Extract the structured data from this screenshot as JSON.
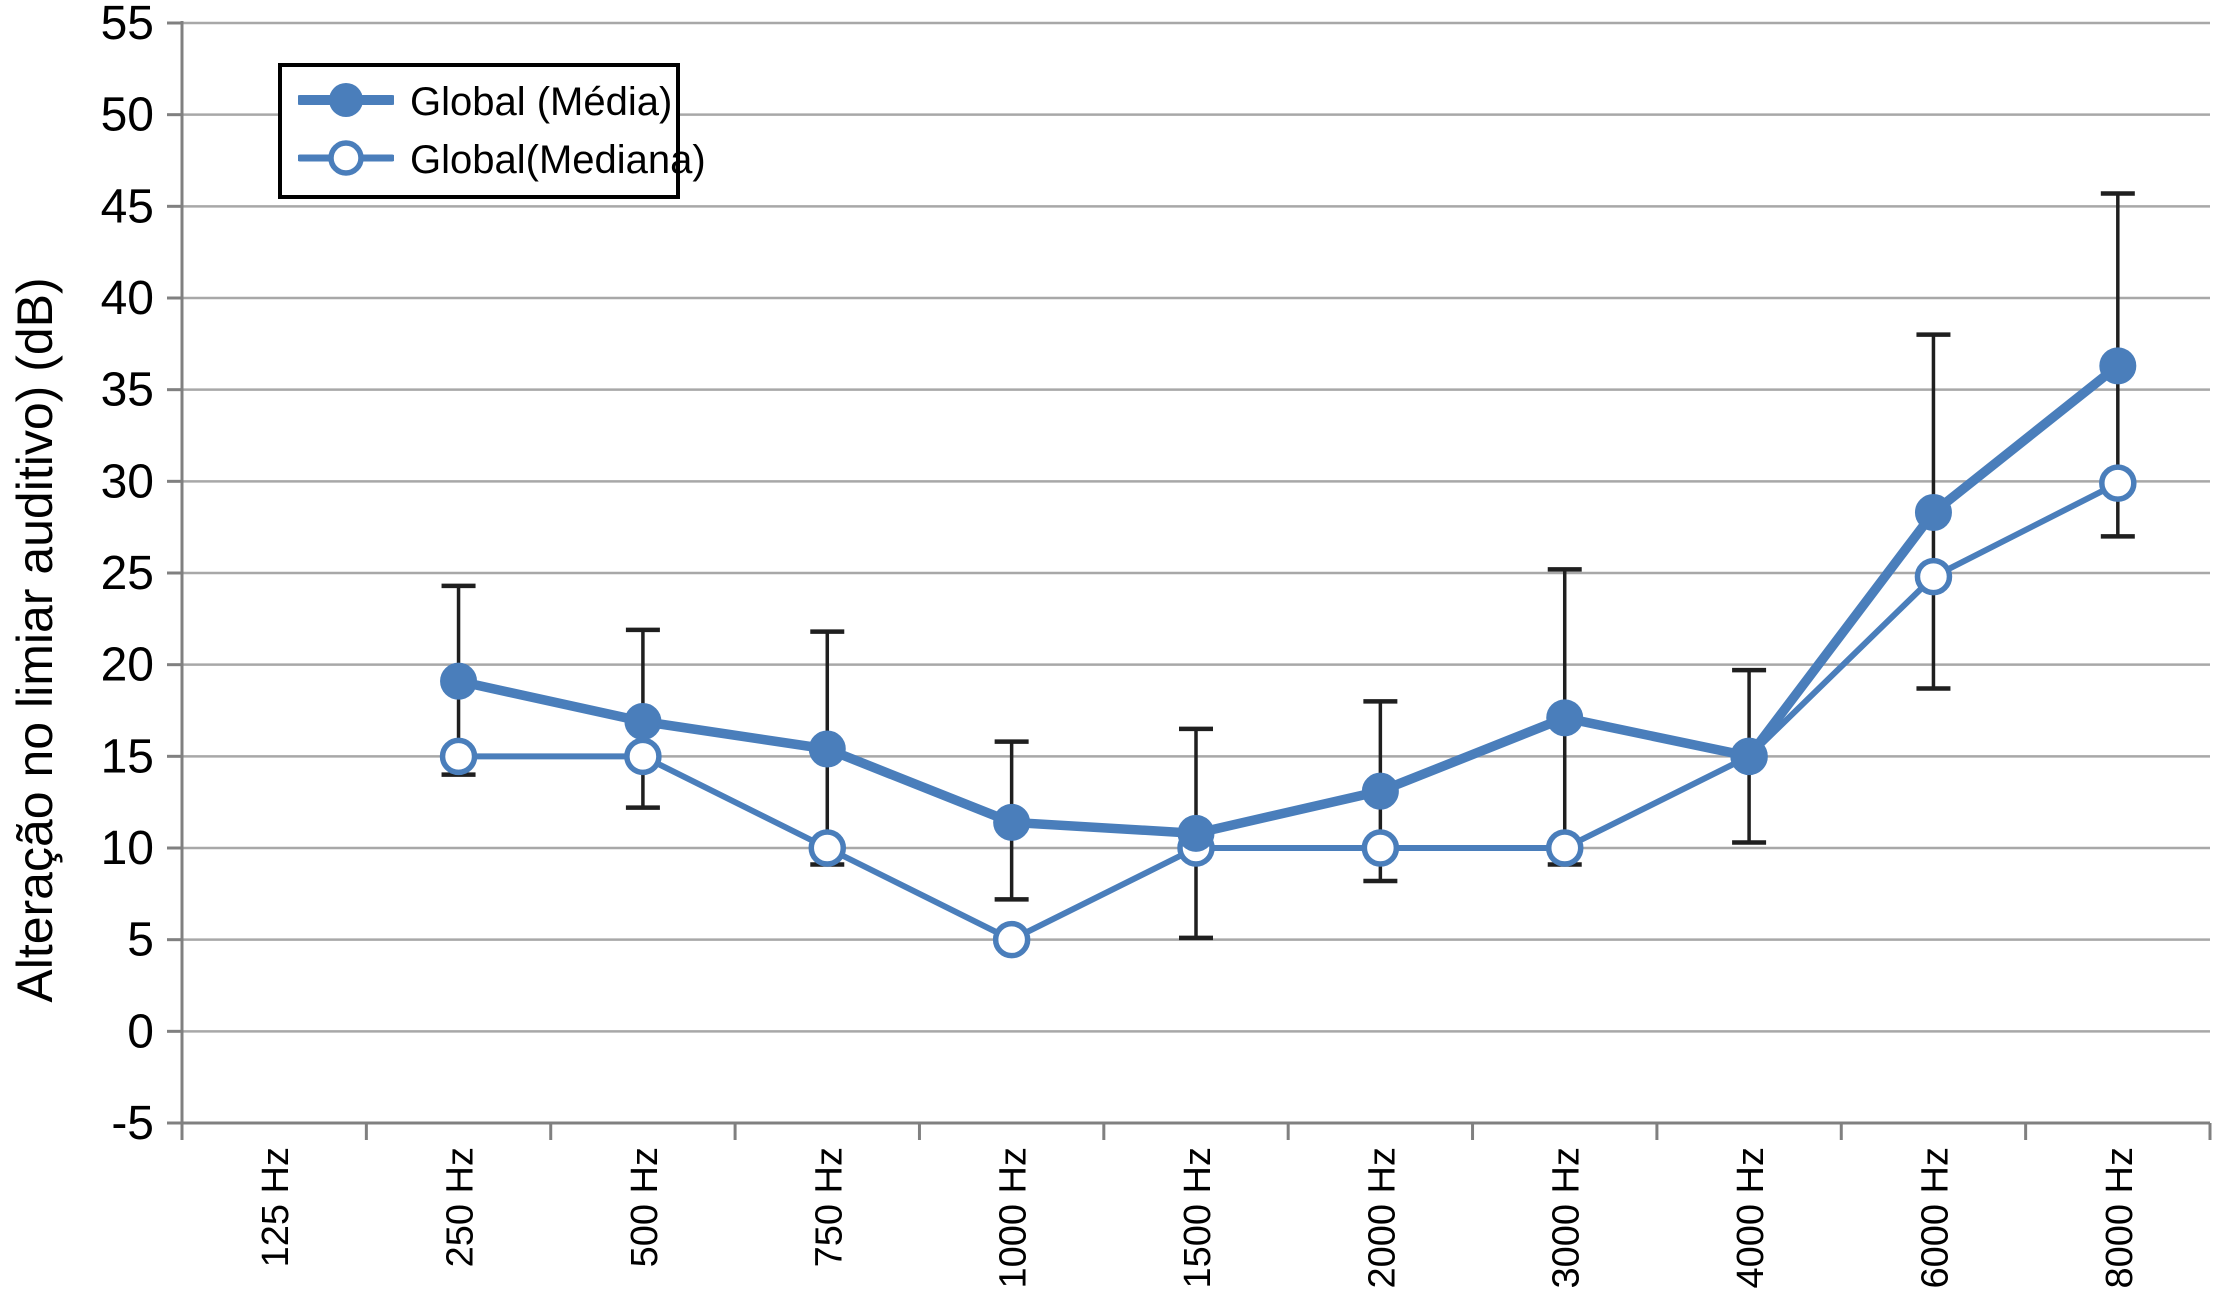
{
  "chart_data": {
    "type": "line",
    "title": "",
    "xlabel": "",
    "ylabel": "Alteração no limiar auditivo) (dB)",
    "ylim": [
      -5,
      55
    ],
    "ytick_step": 5,
    "grid": true,
    "legend_position": "top-left",
    "categories": [
      "125 Hz",
      "250 Hz",
      "500 Hz",
      "750 Hz",
      "1000 Hz",
      "1500 Hz",
      "2000 Hz",
      "3000 Hz",
      "4000 Hz",
      "6000 Hz",
      "8000 Hz"
    ],
    "series": [
      {
        "name": "Global (Média)",
        "marker": "filled-circle",
        "values": [
          null,
          19.1,
          16.9,
          15.4,
          11.4,
          10.8,
          13.1,
          17.1,
          15.0,
          28.3,
          36.3
        ],
        "error_low": [
          null,
          14.0,
          12.2,
          9.1,
          7.2,
          5.1,
          8.2,
          9.1,
          10.3,
          18.7,
          27.0
        ],
        "error_high": [
          null,
          24.3,
          21.9,
          21.8,
          15.8,
          16.5,
          18.0,
          25.2,
          19.7,
          38.0,
          45.7
        ]
      },
      {
        "name": "Global(Mediana)",
        "marker": "open-circle",
        "values": [
          null,
          15,
          15,
          10,
          5,
          10,
          10,
          10,
          15,
          24.8,
          29.9
        ]
      }
    ]
  },
  "legend": {
    "entries": [
      {
        "label": "Global (Média)",
        "marker": "filled-circle"
      },
      {
        "label": "Global(Mediana)",
        "marker": "open-circle"
      }
    ]
  },
  "colors": {
    "series_blue": "#4A7EBB",
    "error_bar": "#1f1f1f",
    "gridline": "#A8A8A8",
    "axis": "#808080",
    "text": "#000000",
    "background": "#FFFFFF"
  },
  "y_tick_labels": [
    "55",
    "50",
    "45",
    "40",
    "35",
    "30",
    "25",
    "20",
    "15",
    "10",
    "5",
    "0",
    "-5"
  ]
}
